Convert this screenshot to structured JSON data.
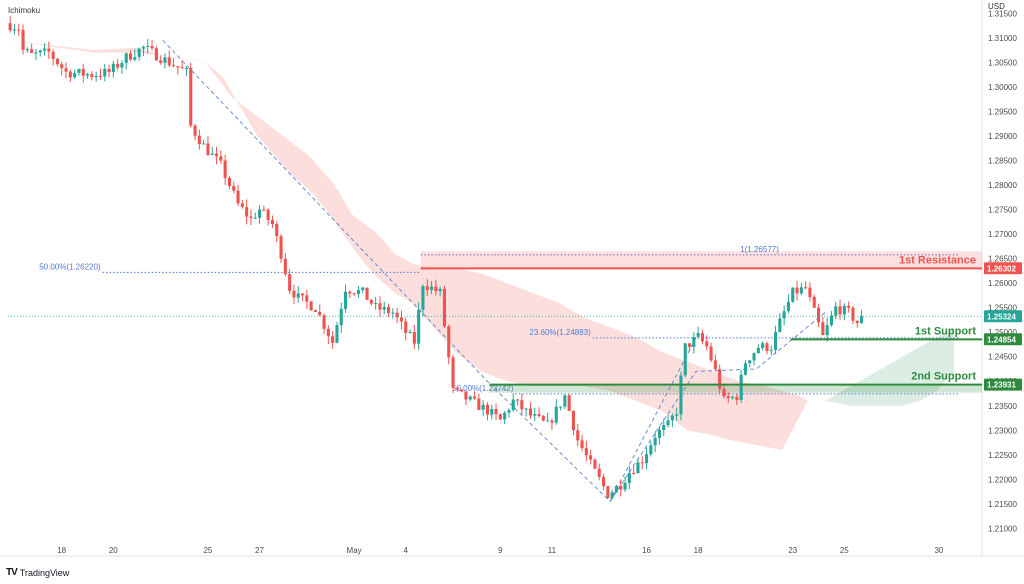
{
  "indicator_name": "Ichimoku",
  "currency": "USD",
  "footer": {
    "logo": "TV",
    "brand": "TradingView"
  },
  "colors": {
    "up": "#26a69a",
    "down": "#ef5350",
    "resistance": "#ef5350",
    "support": "#2e8b3e",
    "fib": "#4e79d6",
    "cloud_bear": "#fcd9d6",
    "cloud_bull": "#d8ece0",
    "current_price_tag": "#26a69a",
    "support_tag": "#2e8b3e",
    "resistance_tag": "#ef5350"
  },
  "chart_data": {
    "type": "candlestick",
    "title": "",
    "ylabel": "USD",
    "ylim": [
      1.206,
      1.3165
    ],
    "y_ticks": [
      "1.31500",
      "1.31000",
      "1.30500",
      "1.30000",
      "1.29500",
      "1.29000",
      "1.28500",
      "1.28000",
      "1.27500",
      "1.27000",
      "1.26500",
      "1.26000",
      "1.25500",
      "1.25000",
      "1.24500",
      "1.24000",
      "1.23500",
      "1.23000",
      "1.22500",
      "1.22000",
      "1.21500",
      "1.21000"
    ],
    "x_ticks": [
      {
        "label": "18",
        "bar": 12
      },
      {
        "label": "20",
        "bar": 24
      },
      {
        "label": "25",
        "bar": 46
      },
      {
        "label": "27",
        "bar": 58
      },
      {
        "label": "May",
        "bar": 80
      },
      {
        "label": "4",
        "bar": 92
      },
      {
        "label": "9",
        "bar": 114
      },
      {
        "label": "11",
        "bar": 126
      },
      {
        "label": "16",
        "bar": 148
      },
      {
        "label": "18",
        "bar": 160
      },
      {
        "label": "23",
        "bar": 182
      },
      {
        "label": "25",
        "bar": 194
      },
      {
        "label": "30",
        "bar": 216
      }
    ],
    "price_path": [
      [
        0,
        1.313
      ],
      [
        3,
        1.312
      ],
      [
        4,
        1.3075
      ],
      [
        6,
        1.3065
      ],
      [
        10,
        1.307
      ],
      [
        14,
        1.303
      ],
      [
        20,
        1.3025
      ],
      [
        24,
        1.303
      ],
      [
        28,
        1.306
      ],
      [
        32,
        1.308
      ],
      [
        36,
        1.306
      ],
      [
        40,
        1.304
      ],
      [
        42,
        1.303
      ],
      [
        43,
        1.292
      ],
      [
        46,
        1.288
      ],
      [
        50,
        1.284
      ],
      [
        54,
        1.276
      ],
      [
        57,
        1.273
      ],
      [
        59,
        1.275
      ],
      [
        62,
        1.272
      ],
      [
        64,
        1.266
      ],
      [
        66,
        1.259
      ],
      [
        68,
        1.257
      ],
      [
        72,
        1.255
      ],
      [
        76,
        1.248
      ],
      [
        79,
        1.259
      ],
      [
        83,
        1.258
      ],
      [
        86,
        1.255
      ],
      [
        90,
        1.254
      ],
      [
        93,
        1.25
      ],
      [
        95,
        1.248
      ],
      [
        97,
        1.26
      ],
      [
        101,
        1.258
      ],
      [
        104,
        1.238
      ],
      [
        108,
        1.236
      ],
      [
        112,
        1.234
      ],
      [
        115,
        1.232
      ],
      [
        118,
        1.236
      ],
      [
        122,
        1.233
      ],
      [
        126,
        1.231
      ],
      [
        130,
        1.237
      ],
      [
        133,
        1.228
      ],
      [
        136,
        1.223
      ],
      [
        138,
        1.22
      ],
      [
        140,
        1.217
      ],
      [
        143,
        1.219
      ],
      [
        145,
        1.2215
      ],
      [
        148,
        1.224
      ],
      [
        151,
        1.229
      ],
      [
        154,
        1.231
      ],
      [
        156,
        1.234
      ],
      [
        158,
        1.247
      ],
      [
        161,
        1.249
      ],
      [
        163,
        1.247
      ],
      [
        165,
        1.242
      ],
      [
        167,
        1.236
      ],
      [
        170,
        1.237
      ],
      [
        172,
        1.244
      ],
      [
        175,
        1.247
      ],
      [
        178,
        1.247
      ],
      [
        180,
        1.252
      ],
      [
        183,
        1.258
      ],
      [
        186,
        1.259
      ],
      [
        188,
        1.254
      ],
      [
        190,
        1.249
      ],
      [
        193,
        1.255
      ],
      [
        196,
        1.254
      ],
      [
        198,
        1.252
      ]
    ],
    "last_price": 1.25324,
    "ichimoku_cloud": {
      "bearish": {
        "upper": [
          [
            0,
            1.3095
          ],
          [
            20,
            1.3075
          ],
          [
            30,
            1.308
          ],
          [
            38,
            1.306
          ],
          [
            44,
            1.3055
          ],
          [
            46,
            1.305
          ],
          [
            52,
            1.298
          ],
          [
            58,
            1.294
          ],
          [
            64,
            1.29
          ],
          [
            70,
            1.286
          ],
          [
            76,
            1.28
          ],
          [
            80,
            1.274
          ],
          [
            86,
            1.27
          ],
          [
            90,
            1.266
          ],
          [
            94,
            1.264
          ],
          [
            98,
            1.263
          ],
          [
            104,
            1.263
          ],
          [
            110,
            1.262
          ],
          [
            116,
            1.26
          ],
          [
            122,
            1.258
          ],
          [
            128,
            1.256
          ],
          [
            134,
            1.253
          ],
          [
            140,
            1.251
          ],
          [
            146,
            1.249
          ],
          [
            152,
            1.246
          ],
          [
            158,
            1.244
          ],
          [
            164,
            1.242
          ],
          [
            170,
            1.24
          ],
          [
            176,
            1.239
          ],
          [
            180,
            1.238
          ],
          [
            184,
            1.237
          ],
          [
            186,
            1.236
          ]
        ],
        "lower": [
          [
            0,
            1.3095
          ],
          [
            20,
            1.307
          ],
          [
            30,
            1.307
          ],
          [
            40,
            1.306
          ],
          [
            46,
            1.305
          ],
          [
            50,
            1.302
          ],
          [
            54,
            1.296
          ],
          [
            58,
            1.29
          ],
          [
            62,
            1.286
          ],
          [
            66,
            1.282
          ],
          [
            70,
            1.279
          ],
          [
            74,
            1.275
          ],
          [
            78,
            1.27
          ],
          [
            82,
            1.265
          ],
          [
            86,
            1.261
          ],
          [
            90,
            1.258
          ],
          [
            94,
            1.256
          ],
          [
            98,
            1.252
          ],
          [
            104,
            1.246
          ],
          [
            110,
            1.242
          ],
          [
            116,
            1.24
          ],
          [
            122,
            1.239
          ],
          [
            128,
            1.239
          ],
          [
            134,
            1.239
          ],
          [
            140,
            1.238
          ],
          [
            146,
            1.236
          ],
          [
            152,
            1.234
          ],
          [
            158,
            1.23
          ],
          [
            164,
            1.229
          ],
          [
            168,
            1.228
          ],
          [
            174,
            1.227
          ],
          [
            180,
            1.226
          ],
          [
            186,
            1.236
          ]
        ]
      },
      "bullish": {
        "upper": [
          [
            190,
            1.236
          ],
          [
            196,
            1.239
          ],
          [
            202,
            1.242
          ],
          [
            208,
            1.245
          ],
          [
            212,
            1.247
          ],
          [
            216,
            1.249
          ],
          [
            220,
            1.251
          ]
        ],
        "lower": [
          [
            190,
            1.236
          ],
          [
            196,
            1.235
          ],
          [
            202,
            1.235
          ],
          [
            208,
            1.235
          ],
          [
            212,
            1.236
          ],
          [
            216,
            1.238
          ],
          [
            220,
            1.242
          ]
        ]
      }
    },
    "levels": [
      {
        "name": "1st Resistance",
        "price": 1.26302,
        "tag": "1.26302",
        "type": "resistance",
        "start_bar": 96
      },
      {
        "name": "1st Support",
        "price": 1.24854,
        "tag": "1.24854",
        "type": "support",
        "start_bar": 182
      },
      {
        "name": "2nd Support",
        "price": 1.23931,
        "tag": "1.23931",
        "type": "support",
        "start_bar": 112
      }
    ],
    "price_tags": [
      {
        "value": 1.25324,
        "label": "1.25324",
        "type": "current"
      }
    ],
    "fib_levels": [
      {
        "label": "50.00%(1.26220)",
        "price": 1.2622,
        "start_bar": 22,
        "end_bar": 96,
        "label_side": "left"
      },
      {
        "label": "1(1.26577)",
        "price": 1.26577,
        "start_bar": 96,
        "end_bar": 221,
        "label_side": "mid"
      },
      {
        "label": "23.60%(1.24883)",
        "price": 1.24883,
        "start_bar": 136,
        "end_bar": 221,
        "label_side": "left"
      },
      {
        "label": "50.00%(1.23742)",
        "price": 1.23742,
        "start_bar": 118,
        "end_bar": 221,
        "label_side": "left"
      }
    ],
    "fib_drawings": [
      [
        [
          36,
          1.3095
        ],
        [
          112,
          1.2395
        ]
      ],
      [
        [
          112,
          1.2395
        ],
        [
          140,
          1.2155
        ],
        [
          160,
          1.2488
        ]
      ],
      [
        [
          140,
          1.2155
        ],
        [
          160,
          1.242
        ],
        [
          174,
          1.2425
        ],
        [
          190,
          1.254
        ]
      ]
    ]
  }
}
